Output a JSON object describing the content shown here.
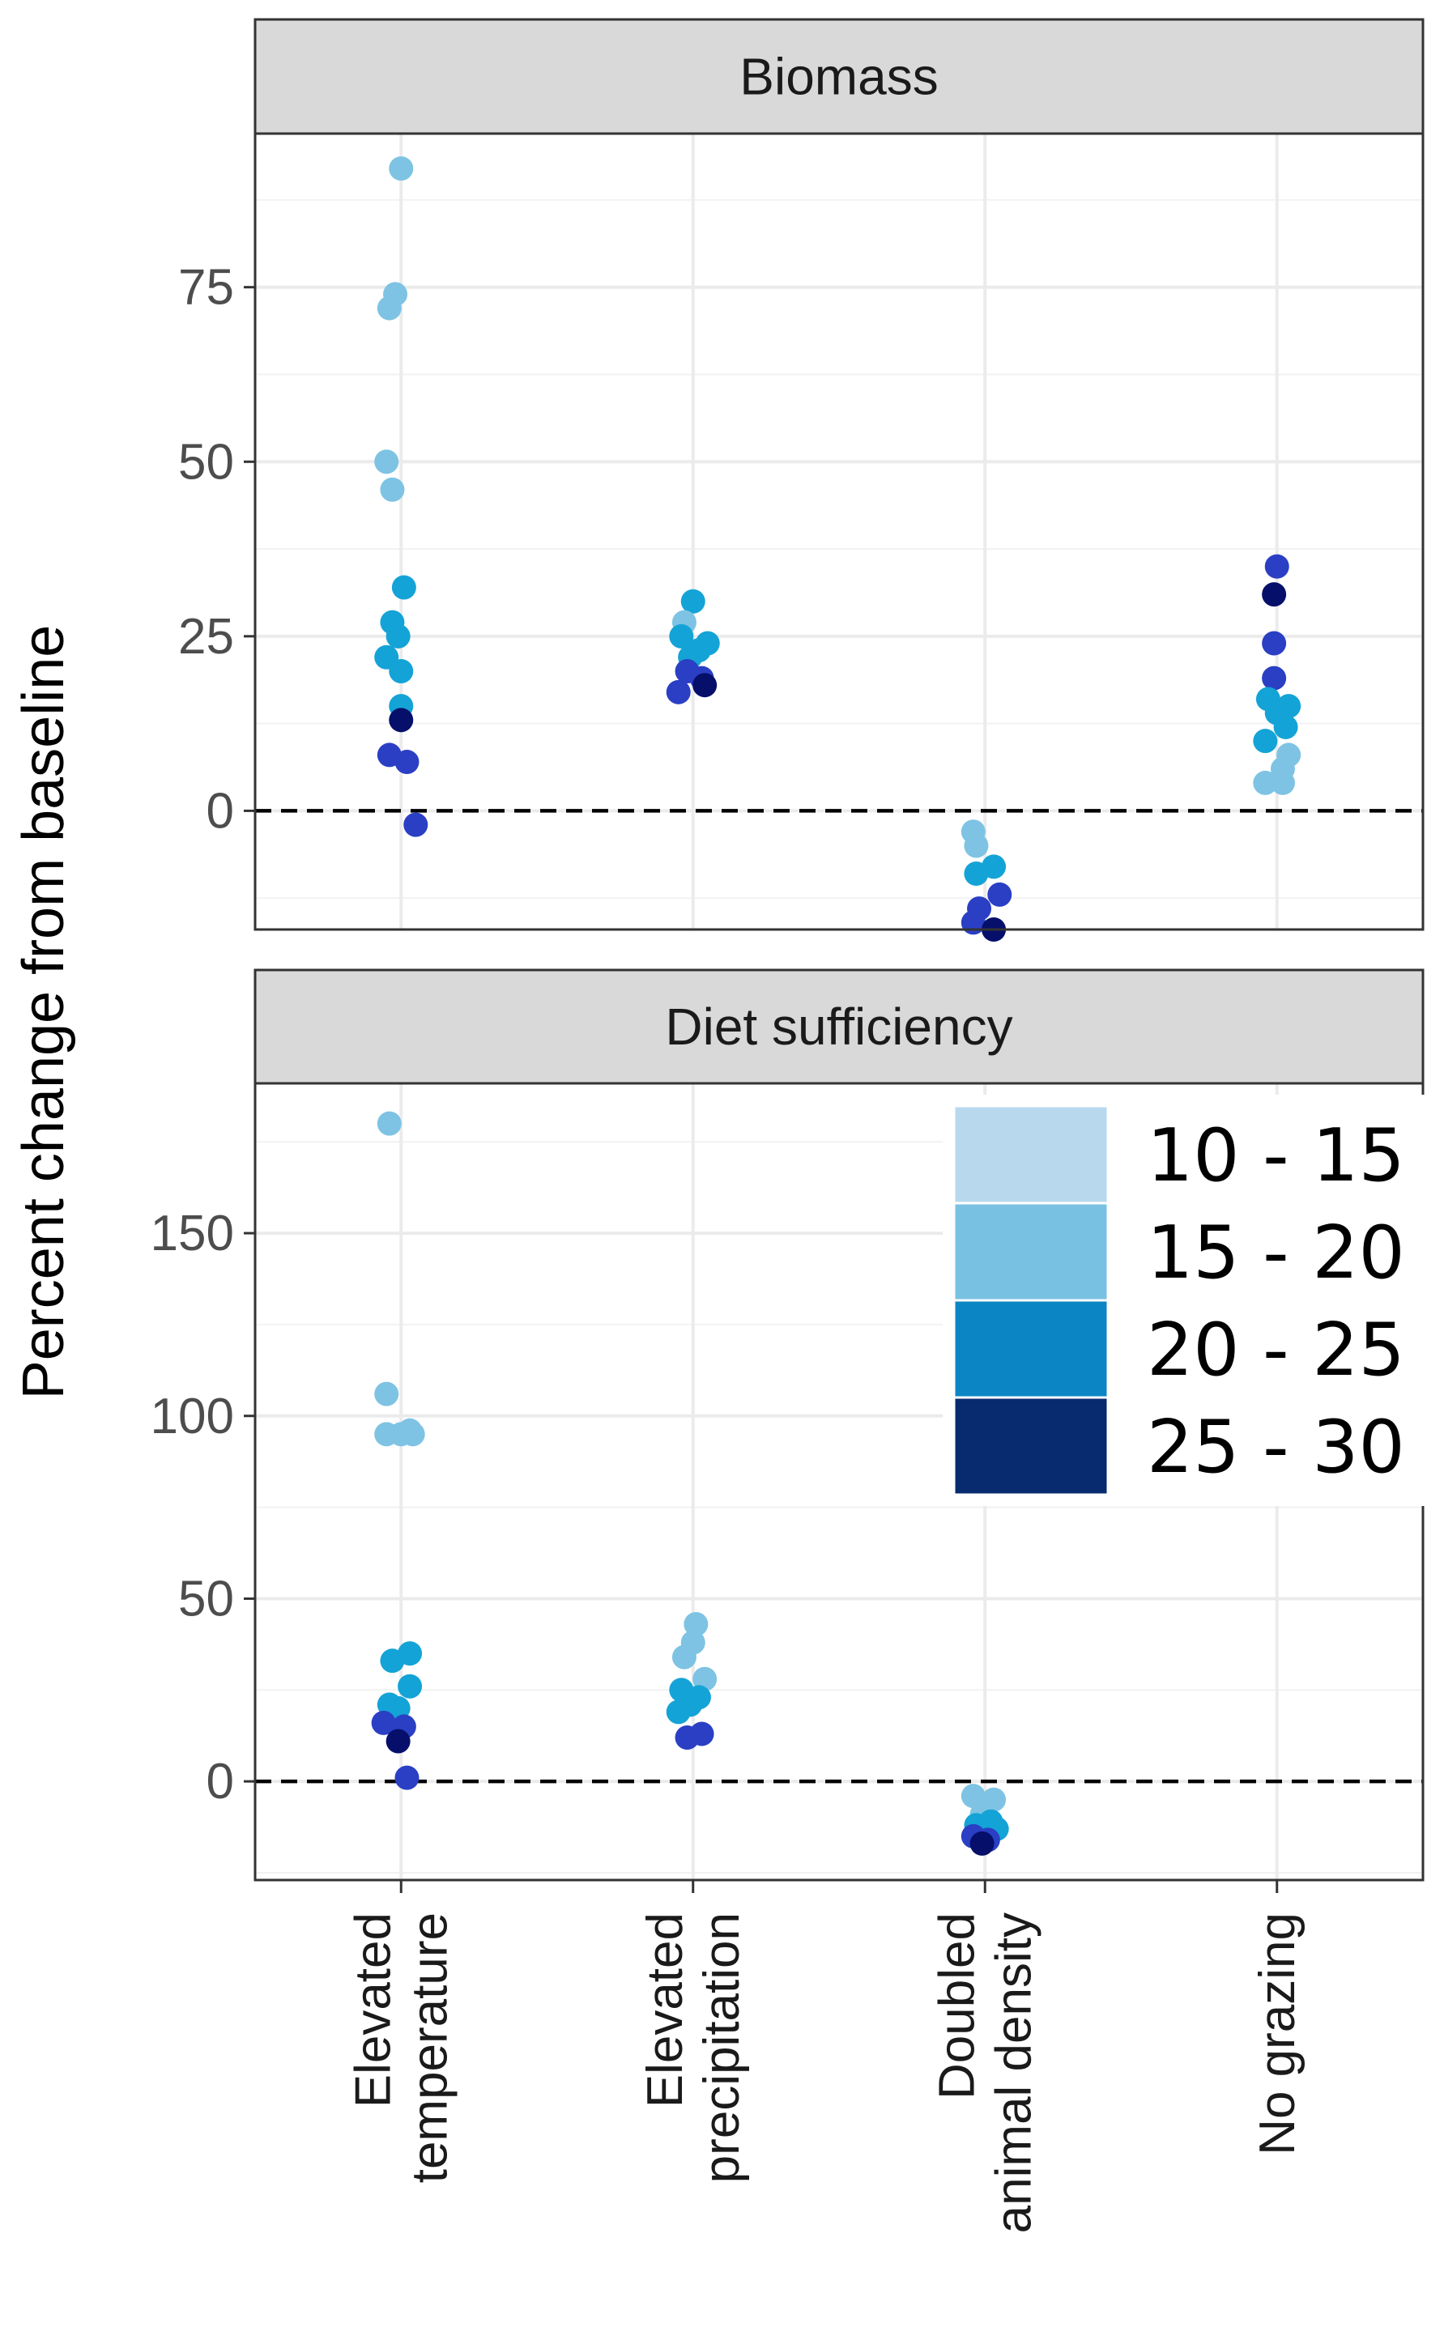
{
  "chart_data": {
    "type": "scatter",
    "ylabel": "Percent change from baseline",
    "xlabel": "",
    "categories": [
      "Elevated\ntemperature",
      "Elevated\nprecipitation",
      "Doubled\nanimal density",
      "No grazing"
    ],
    "category_keys": [
      "Elevated temperature",
      "Elevated precipitation",
      "Doubled animal density",
      "No grazing"
    ],
    "reference_line": {
      "y": 0,
      "style": "dashed"
    },
    "legend": {
      "placement": "inside-right",
      "entries": [
        {
          "label": "10 - 15",
          "color": "#b8d8ee"
        },
        {
          "label": "15 - 20",
          "color": "#79c1e3"
        },
        {
          "label": "20 - 25",
          "color": "#0b85c4"
        },
        {
          "label": "25 - 30",
          "color": "#082a6e"
        }
      ]
    },
    "point_colors": {
      "light": "#7ec3e3",
      "cyan": "#14a3d6",
      "blue": "#2a3fc4",
      "navy": "#06106a"
    },
    "panels": [
      {
        "title": "Biomass",
        "ylim": [
          -17,
          97
        ],
        "yticks": [
          0,
          25,
          50,
          75
        ],
        "points": [
          {
            "cat": 0,
            "y": 92,
            "c": "light",
            "j": 0.0
          },
          {
            "cat": 0,
            "y": 74,
            "c": "light",
            "j": -0.02
          },
          {
            "cat": 0,
            "y": 72,
            "c": "light",
            "j": -0.04
          },
          {
            "cat": 0,
            "y": 50,
            "c": "light",
            "j": -0.05
          },
          {
            "cat": 0,
            "y": 46,
            "c": "light",
            "j": -0.03
          },
          {
            "cat": 0,
            "y": 32,
            "c": "cyan",
            "j": 0.01
          },
          {
            "cat": 0,
            "y": 27,
            "c": "cyan",
            "j": -0.03
          },
          {
            "cat": 0,
            "y": 25,
            "c": "cyan",
            "j": -0.01
          },
          {
            "cat": 0,
            "y": 22,
            "c": "cyan",
            "j": -0.05
          },
          {
            "cat": 0,
            "y": 20,
            "c": "cyan",
            "j": 0.0
          },
          {
            "cat": 0,
            "y": 15,
            "c": "cyan",
            "j": 0.0
          },
          {
            "cat": 0,
            "y": 13,
            "c": "navy",
            "j": 0.0
          },
          {
            "cat": 0,
            "y": 8,
            "c": "blue",
            "j": -0.04
          },
          {
            "cat": 0,
            "y": 7,
            "c": "blue",
            "j": 0.02
          },
          {
            "cat": 0,
            "y": -2,
            "c": "blue",
            "j": 0.05
          },
          {
            "cat": 1,
            "y": 30,
            "c": "cyan",
            "j": 0.0
          },
          {
            "cat": 1,
            "y": 27,
            "c": "light",
            "j": -0.03
          },
          {
            "cat": 1,
            "y": 25,
            "c": "cyan",
            "j": -0.04
          },
          {
            "cat": 1,
            "y": 24,
            "c": "cyan",
            "j": 0.05
          },
          {
            "cat": 1,
            "y": 23,
            "c": "cyan",
            "j": 0.02
          },
          {
            "cat": 1,
            "y": 22,
            "c": "cyan",
            "j": -0.01
          },
          {
            "cat": 1,
            "y": 20,
            "c": "blue",
            "j": -0.02
          },
          {
            "cat": 1,
            "y": 19,
            "c": "blue",
            "j": 0.03
          },
          {
            "cat": 1,
            "y": 18,
            "c": "navy",
            "j": 0.04
          },
          {
            "cat": 1,
            "y": 17,
            "c": "blue",
            "j": -0.05
          },
          {
            "cat": 2,
            "y": -3,
            "c": "light",
            "j": -0.04
          },
          {
            "cat": 2,
            "y": -5,
            "c": "light",
            "j": -0.03
          },
          {
            "cat": 2,
            "y": -8,
            "c": "cyan",
            "j": 0.03
          },
          {
            "cat": 2,
            "y": -9,
            "c": "cyan",
            "j": -0.03
          },
          {
            "cat": 2,
            "y": -12,
            "c": "blue",
            "j": 0.05
          },
          {
            "cat": 2,
            "y": -14,
            "c": "blue",
            "j": -0.02
          },
          {
            "cat": 2,
            "y": -16,
            "c": "blue",
            "j": -0.04
          },
          {
            "cat": 2,
            "y": -17,
            "c": "navy",
            "j": 0.03
          },
          {
            "cat": 3,
            "y": 35,
            "c": "blue",
            "j": 0.0
          },
          {
            "cat": 3,
            "y": 31,
            "c": "navy",
            "j": -0.01
          },
          {
            "cat": 3,
            "y": 24,
            "c": "blue",
            "j": -0.01
          },
          {
            "cat": 3,
            "y": 19,
            "c": "blue",
            "j": -0.01
          },
          {
            "cat": 3,
            "y": 16,
            "c": "cyan",
            "j": -0.03
          },
          {
            "cat": 3,
            "y": 15,
            "c": "cyan",
            "j": 0.04
          },
          {
            "cat": 3,
            "y": 14,
            "c": "cyan",
            "j": 0.0
          },
          {
            "cat": 3,
            "y": 12,
            "c": "cyan",
            "j": 0.03
          },
          {
            "cat": 3,
            "y": 10,
            "c": "cyan",
            "j": -0.04
          },
          {
            "cat": 3,
            "y": 8,
            "c": "light",
            "j": 0.04
          },
          {
            "cat": 3,
            "y": 6,
            "c": "light",
            "j": 0.02
          },
          {
            "cat": 3,
            "y": 4,
            "c": "light",
            "j": -0.04
          },
          {
            "cat": 3,
            "y": 4,
            "c": "light",
            "j": 0.02
          }
        ]
      },
      {
        "title": "Diet sufficiency",
        "ylim": [
          -27,
          191
        ],
        "yticks": [
          0,
          50,
          100,
          150
        ],
        "points": [
          {
            "cat": 0,
            "y": 180,
            "c": "light",
            "j": -0.04
          },
          {
            "cat": 0,
            "y": 106,
            "c": "light",
            "j": -0.05
          },
          {
            "cat": 0,
            "y": 96,
            "c": "light",
            "j": 0.03
          },
          {
            "cat": 0,
            "y": 95,
            "c": "light",
            "j": -0.05
          },
          {
            "cat": 0,
            "y": 95,
            "c": "light",
            "j": 0.0
          },
          {
            "cat": 0,
            "y": 95,
            "c": "light",
            "j": 0.04
          },
          {
            "cat": 0,
            "y": 35,
            "c": "cyan",
            "j": 0.03
          },
          {
            "cat": 0,
            "y": 33,
            "c": "cyan",
            "j": -0.03
          },
          {
            "cat": 0,
            "y": 26,
            "c": "cyan",
            "j": 0.03
          },
          {
            "cat": 0,
            "y": 21,
            "c": "cyan",
            "j": -0.04
          },
          {
            "cat": 0,
            "y": 20,
            "c": "cyan",
            "j": -0.01
          },
          {
            "cat": 0,
            "y": 16,
            "c": "blue",
            "j": -0.06
          },
          {
            "cat": 0,
            "y": 15,
            "c": "blue",
            "j": 0.01
          },
          {
            "cat": 0,
            "y": 11,
            "c": "navy",
            "j": -0.01
          },
          {
            "cat": 0,
            "y": 1,
            "c": "blue",
            "j": 0.02
          },
          {
            "cat": 1,
            "y": 43,
            "c": "light",
            "j": 0.01
          },
          {
            "cat": 1,
            "y": 38,
            "c": "light",
            "j": 0.0
          },
          {
            "cat": 1,
            "y": 34,
            "c": "light",
            "j": -0.03
          },
          {
            "cat": 1,
            "y": 28,
            "c": "light",
            "j": 0.04
          },
          {
            "cat": 1,
            "y": 25,
            "c": "cyan",
            "j": -0.04
          },
          {
            "cat": 1,
            "y": 23,
            "c": "cyan",
            "j": 0.02
          },
          {
            "cat": 1,
            "y": 21,
            "c": "cyan",
            "j": -0.01
          },
          {
            "cat": 1,
            "y": 19,
            "c": "cyan",
            "j": -0.05
          },
          {
            "cat": 1,
            "y": 13,
            "c": "blue",
            "j": 0.03
          },
          {
            "cat": 1,
            "y": 12,
            "c": "blue",
            "j": -0.02
          },
          {
            "cat": 2,
            "y": -4,
            "c": "light",
            "j": -0.04
          },
          {
            "cat": 2,
            "y": -5,
            "c": "light",
            "j": 0.03
          },
          {
            "cat": 2,
            "y": -9,
            "c": "light",
            "j": -0.01
          },
          {
            "cat": 2,
            "y": -11,
            "c": "cyan",
            "j": 0.02
          },
          {
            "cat": 2,
            "y": -12,
            "c": "cyan",
            "j": -0.03
          },
          {
            "cat": 2,
            "y": -13,
            "c": "cyan",
            "j": 0.04
          },
          {
            "cat": 2,
            "y": -15,
            "c": "blue",
            "j": -0.04
          },
          {
            "cat": 2,
            "y": -16,
            "c": "blue",
            "j": 0.01
          },
          {
            "cat": 2,
            "y": -17,
            "c": "navy",
            "j": -0.01
          }
        ]
      }
    ]
  }
}
